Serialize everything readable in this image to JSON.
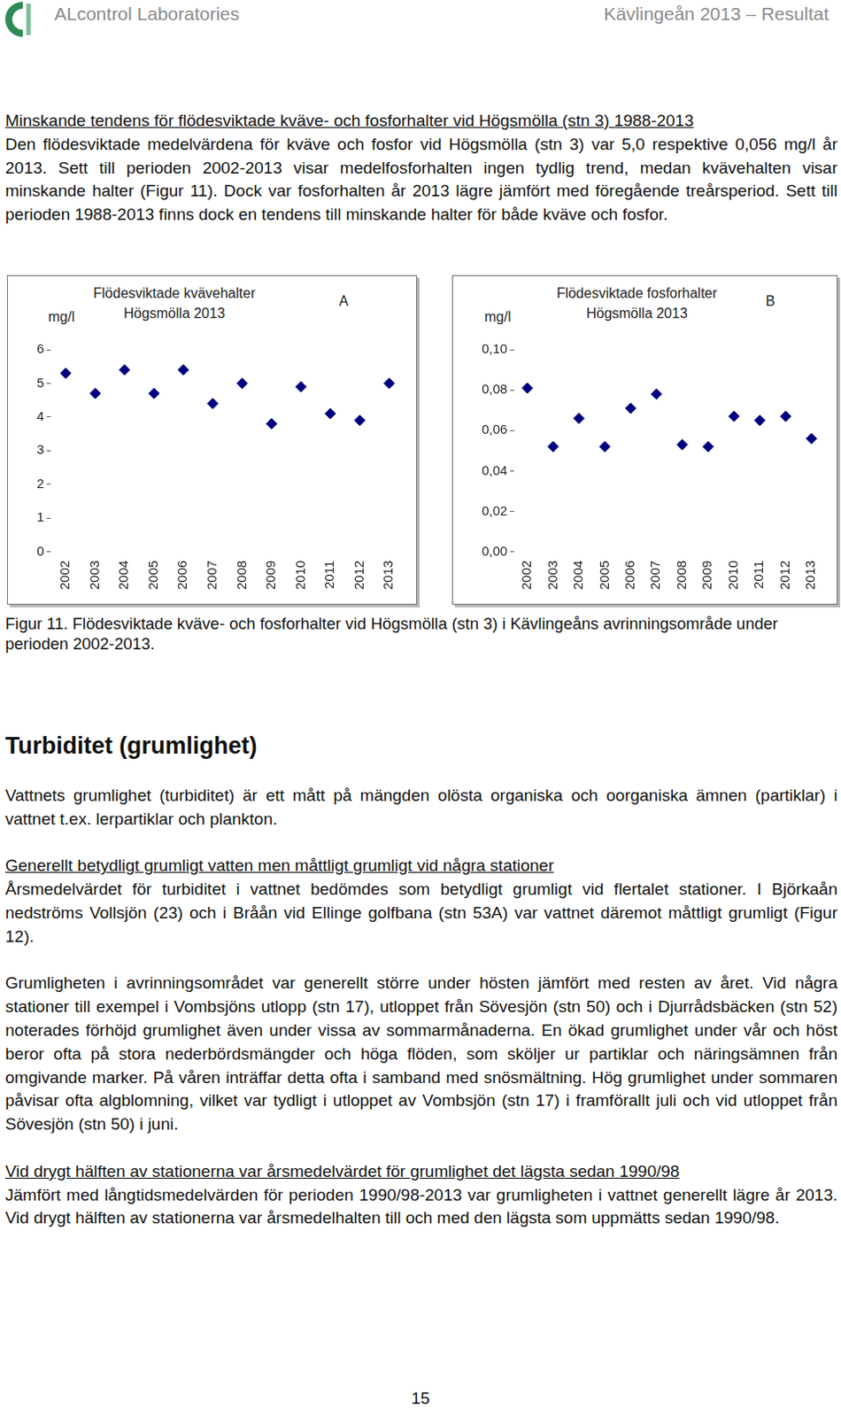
{
  "header": {
    "left": "ALcontrol Laboratories",
    "right": "Kävlingeån 2013 – Resultat"
  },
  "section1": {
    "heading": "Minskande tendens för flödesviktade kväve- och fosforhalter vid Högsmölla (stn 3) 1988-2013",
    "paragraphs": [
      "Den flödesviktade medelvärdena för kväve och fosfor vid Högsmölla (stn 3) var 5,0 respektive 0,056 mg/l år 2013. Sett till perioden 2002-2013 visar medelfosforhalten ingen tydlig trend, medan kvävehalten visar minskande halter (Figur 11). Dock var fosforhalten år 2013 lägre jämfört med föregående treårsperiod. Sett till perioden 1988-2013 finns dock en tendens till minskande halter för både kväve och fosfor."
    ]
  },
  "chart_data": [
    {
      "type": "scatter",
      "title": [
        "Flödesviktade kvävehalter",
        "Högsmölla 2013"
      ],
      "panel_label": "A",
      "y_label": "mg/l",
      "categories": [
        "2002",
        "2003",
        "2004",
        "2005",
        "2006",
        "2007",
        "2008",
        "2009",
        "2010",
        "2011",
        "2012",
        "2013"
      ],
      "values": [
        5.3,
        4.7,
        5.4,
        4.7,
        5.4,
        4.4,
        5.0,
        3.8,
        4.9,
        4.1,
        3.9,
        5.0
      ],
      "color": "#000080",
      "marker": "diamond",
      "grid": false,
      "ylim": [
        0,
        6
      ],
      "yticks": [
        0,
        1,
        2,
        3,
        4,
        5,
        6
      ]
    },
    {
      "type": "scatter",
      "title": [
        "Flödesviktade fosforhalter",
        "Högsmölla 2013"
      ],
      "panel_label": "B",
      "y_label": "mg/l",
      "categories": [
        "2002",
        "2003",
        "2004",
        "2005",
        "2006",
        "2007",
        "2008",
        "2009",
        "2010",
        "2011",
        "2012",
        "2013"
      ],
      "values": [
        0.081,
        0.052,
        0.066,
        0.052,
        0.071,
        0.078,
        0.053,
        0.052,
        0.067,
        0.065,
        0.067,
        0.056
      ],
      "color": "#000080",
      "marker": "diamond",
      "grid": false,
      "ylim": [
        0,
        0.1
      ],
      "yticks": [
        {
          "value": 0,
          "label": "0,00"
        },
        {
          "value": 0.02,
          "label": "0,02"
        },
        {
          "value": 0.04,
          "label": "0,04"
        },
        {
          "value": 0.06,
          "label": "0,06"
        },
        {
          "value": 0.08,
          "label": "0,08"
        },
        {
          "value": 0.1,
          "label": "0,10"
        }
      ]
    }
  ],
  "caption": "Figur 11. Flödesviktade kväve- och fosforhalter vid Högsmölla (stn 3) i Kävlingeåns avrinningsområde under perioden 2002-2013.",
  "section2": {
    "title": "Turbiditet (grumlighet)",
    "intro": "Vattnets grumlighet (turbiditet) är ett mått på mängden olösta organiska och oorganiska ämnen (partiklar) i vattnet t.ex. lerpartiklar och plankton.",
    "subsections": [
      {
        "heading": "Generellt betydligt grumligt vatten men måttligt grumligt vid några stationer",
        "paragraphs": [
          "Årsmedelvärdet för turbiditet i vattnet bedömdes som betydligt grumligt vid flertalet stationer. I Björkaån nedströms Vollsjön (23) och i Bråån vid Ellinge golfbana (stn 53A) var vattnet däremot måttligt grumligt (Figur 12).",
          "Grumligheten i avrinningsområdet var generellt större under hösten jämfört med resten av året. Vid några stationer till exempel i Vombsjöns utlopp (stn 17), utloppet från Sövesjön (stn 50) och i Djurrådsbäcken (stn 52) noterades förhöjd grumlighet även under vissa av sommarmånaderna. En ökad grumlighet under vår och höst beror ofta på stora nederbördsmängder och höga flöden, som sköljer ur partiklar och näringsämnen från omgivande marker. På våren inträffar detta ofta i samband med snösmältning. Hög grumlighet under sommaren påvisar ofta algblomning, vilket var tydligt i utloppet av Vombsjön (stn 17) i framförallt juli och vid utloppet från Sövesjön (stn 50) i juni."
        ]
      },
      {
        "heading": "Vid drygt hälften av stationerna var årsmedelvärdet för grumlighet det lägsta sedan 1990/98",
        "paragraphs": [
          "Jämfört med långtidsmedelvärden för perioden 1990/98-2013 var grumligheten i vattnet generellt lägre år 2013. Vid drygt hälften av stationerna var årsmedelhalten till och med den lägsta som uppmätts sedan 1990/98."
        ]
      }
    ]
  },
  "page_number": "15"
}
